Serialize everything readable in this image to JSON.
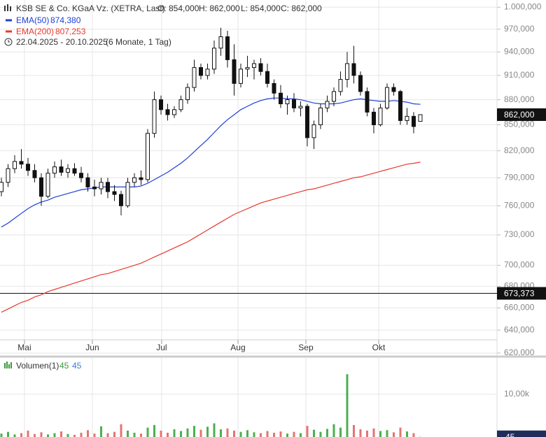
{
  "chart_data": {
    "type": "candlestick",
    "title": "KSB SE & Co. KGaA Vz. (XETRA, Last)",
    "ohlc_labels": [
      "O: 854,000",
      "H: 862,000",
      "L: 854,000",
      "C: 862,000"
    ],
    "date_range": "22.04.2025 - 20.10.2025",
    "period": "(6 Monate, 1 Tag)",
    "x": [
      0,
      1,
      2,
      3,
      4,
      5,
      6,
      7,
      8,
      9,
      10,
      11,
      12,
      13,
      14,
      15,
      16,
      17,
      18,
      19,
      20,
      21,
      22,
      23,
      24,
      25,
      26,
      27,
      28,
      29,
      30,
      31,
      32,
      33,
      34,
      35,
      36,
      37,
      38,
      39,
      40,
      41,
      42,
      43,
      44,
      45,
      46,
      47,
      48,
      49,
      50,
      51,
      52,
      53,
      54,
      55,
      56,
      57,
      58,
      59,
      60,
      61,
      62,
      63
    ],
    "open": [
      775,
      785,
      800,
      808,
      805,
      798,
      790,
      770,
      795,
      802,
      796,
      800,
      795,
      790,
      780,
      778,
      785,
      775,
      772,
      760,
      785,
      790,
      788,
      840,
      880,
      868,
      862,
      868,
      880,
      895,
      920,
      910,
      918,
      945,
      960,
      930,
      900,
      918,
      920,
      925,
      915,
      900,
      888,
      875,
      880,
      870,
      872,
      835,
      850,
      870,
      878,
      890,
      905,
      925,
      910,
      890,
      865,
      850,
      870,
      895,
      890,
      855,
      860,
      854
    ],
    "high": [
      790,
      805,
      815,
      822,
      812,
      805,
      795,
      800,
      808,
      810,
      805,
      806,
      802,
      795,
      788,
      790,
      790,
      782,
      776,
      790,
      795,
      798,
      845,
      890,
      885,
      875,
      872,
      885,
      900,
      930,
      925,
      925,
      955,
      972,
      968,
      950,
      925,
      935,
      930,
      932,
      925,
      905,
      898,
      885,
      888,
      878,
      875,
      855,
      875,
      885,
      895,
      915,
      940,
      948,
      915,
      895,
      870,
      875,
      900,
      900,
      892,
      870,
      865,
      862
    ],
    "low": [
      770,
      780,
      795,
      800,
      792,
      785,
      760,
      768,
      790,
      792,
      790,
      792,
      785,
      775,
      770,
      772,
      768,
      765,
      750,
      758,
      780,
      782,
      785,
      835,
      862,
      855,
      858,
      865,
      875,
      890,
      905,
      905,
      912,
      935,
      920,
      885,
      895,
      908,
      905,
      910,
      895,
      880,
      870,
      862,
      865,
      860,
      825,
      822,
      845,
      865,
      872,
      885,
      895,
      900,
      885,
      860,
      840,
      848,
      868,
      885,
      850,
      850,
      840,
      854
    ],
    "close": [
      785,
      800,
      808,
      805,
      798,
      790,
      770,
      795,
      802,
      796,
      800,
      795,
      790,
      780,
      778,
      785,
      775,
      772,
      760,
      785,
      790,
      788,
      840,
      880,
      868,
      862,
      868,
      880,
      895,
      920,
      910,
      918,
      945,
      960,
      930,
      900,
      918,
      920,
      925,
      915,
      900,
      888,
      875,
      880,
      870,
      872,
      835,
      850,
      870,
      878,
      890,
      905,
      925,
      910,
      890,
      865,
      850,
      870,
      895,
      890,
      855,
      860,
      848,
      862
    ],
    "up_color": "#ffffff",
    "down_color": "#111111",
    "series": [
      {
        "name": "EMA(50)",
        "color": "#1f3fd8",
        "value_label": "874,380",
        "values": [
          738,
          742,
          747,
          752,
          757,
          761,
          764,
          766,
          769,
          771,
          773,
          775,
          777,
          778,
          779,
          780,
          780,
          780,
          780,
          780,
          780,
          781,
          784,
          788,
          792,
          796,
          801,
          806,
          812,
          819,
          826,
          833,
          841,
          849,
          856,
          862,
          868,
          872,
          876,
          879,
          881,
          882,
          882,
          881,
          881,
          880,
          878,
          876,
          875,
          875,
          875,
          876,
          878,
          880,
          881,
          880,
          879,
          878,
          878,
          879,
          878,
          877,
          875,
          874.38
        ]
      },
      {
        "name": "EMA(200)",
        "color": "#e8392e",
        "value_label": "807,253",
        "values": [
          656,
          659,
          662,
          665,
          667,
          670,
          672,
          675,
          677,
          679,
          681,
          683,
          685,
          687,
          689,
          691,
          692,
          694,
          696,
          698,
          700,
          702,
          705,
          708,
          711,
          714,
          717,
          720,
          723,
          727,
          731,
          735,
          739,
          743,
          747,
          751,
          754,
          757,
          760,
          763,
          765,
          767,
          769,
          771,
          773,
          775,
          777,
          778,
          780,
          782,
          784,
          786,
          788,
          790,
          791,
          793,
          795,
          797,
          799,
          801,
          803,
          805,
          806,
          807.253
        ]
      }
    ],
    "xlim": [
      -0.21,
      74.53
    ],
    "xticks": [
      {
        "value": 3.47,
        "label": "Mai"
      },
      {
        "value": 13.68,
        "label": "Jun"
      },
      {
        "value": 24.1,
        "label": "Jul"
      },
      {
        "value": 35.58,
        "label": "Aug"
      },
      {
        "value": 45.79,
        "label": "Sep"
      },
      {
        "value": 56.74,
        "label": "Okt"
      }
    ],
    "ylim": [
      617,
      1010
    ],
    "log_scale": true,
    "grid": true,
    "yticks": [
      {
        "value": 1000,
        "label": "1.000,000"
      },
      {
        "value": 970,
        "label": "970,000"
      },
      {
        "value": 940,
        "label": "940,000"
      },
      {
        "value": 910,
        "label": "910,000"
      },
      {
        "value": 880,
        "label": "880,000"
      },
      {
        "value": 850,
        "label": "850,000"
      },
      {
        "value": 820,
        "label": "820,000"
      },
      {
        "value": 790,
        "label": "790,000"
      },
      {
        "value": 760,
        "label": "760,000"
      },
      {
        "value": 730,
        "label": "730,000"
      },
      {
        "value": 700,
        "label": "700,000"
      },
      {
        "value": 680,
        "label": "680,000"
      },
      {
        "value": 660,
        "label": "660,000"
      },
      {
        "value": 640,
        "label": "640,000"
      },
      {
        "value": 620,
        "label": "620,000"
      }
    ],
    "last_price": {
      "value": 862,
      "label": "862,000"
    },
    "hline": {
      "value": 673.373,
      "label": "673,373"
    },
    "volume": {
      "title": "Volumen(1)",
      "up_color": "#4caf50",
      "down_color": "#e57373",
      "label_color": "#3a9a3a",
      "box_color": "#1f2d5a",
      "values": [
        800,
        1200,
        600,
        900,
        1500,
        700,
        1100,
        600,
        900,
        1300,
        700,
        500,
        1000,
        1600,
        800,
        2500,
        900,
        1200,
        3000,
        1500,
        1000,
        800,
        2200,
        2800,
        1500,
        1000,
        1800,
        1400,
        2000,
        2600,
        1700,
        2400,
        3200,
        1800,
        2000,
        1500,
        1200,
        1600,
        1100,
        900,
        1400,
        1000,
        1300,
        800,
        1200,
        900,
        2600,
        1700,
        1200,
        1900,
        3000,
        2200,
        14700,
        2800,
        1800,
        1500,
        2000,
        1400,
        1600,
        1100,
        2200,
        1300,
        900,
        45
      ],
      "ylim": [
        0,
        18500
      ],
      "yticks": [
        {
          "value": 10000,
          "label": "10,00k"
        }
      ]
    }
  }
}
